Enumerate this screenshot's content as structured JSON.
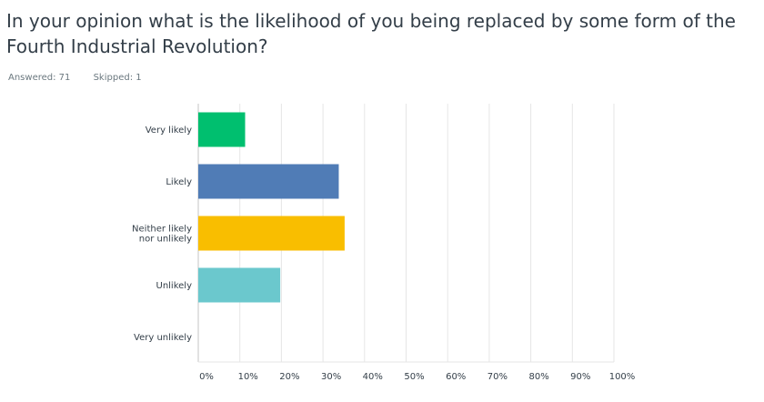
{
  "question": {
    "title": "In your opinion what is the likelihood of you being replaced by some form of the Fourth Industrial Revolution?",
    "answered": "Answered: 71",
    "skipped": "Skipped: 1"
  },
  "chart_data": {
    "type": "bar",
    "orientation": "horizontal",
    "categories": [
      "Very likely",
      "Likely",
      "Neither likely nor unlikely",
      "Unlikely",
      "Very unlikely"
    ],
    "values": [
      11.27,
      33.8,
      35.21,
      19.72,
      0
    ],
    "colors": [
      "#00bf6f",
      "#507cb6",
      "#f9be00",
      "#6bc8cd",
      "#ff8b4f"
    ],
    "xlim": [
      0,
      100
    ],
    "xticks": [
      "0%",
      "10%",
      "20%",
      "30%",
      "40%",
      "50%",
      "60%",
      "70%",
      "80%",
      "90%",
      "100%"
    ],
    "title": "",
    "xlabel": "",
    "ylabel": "",
    "grid": "vertical"
  }
}
